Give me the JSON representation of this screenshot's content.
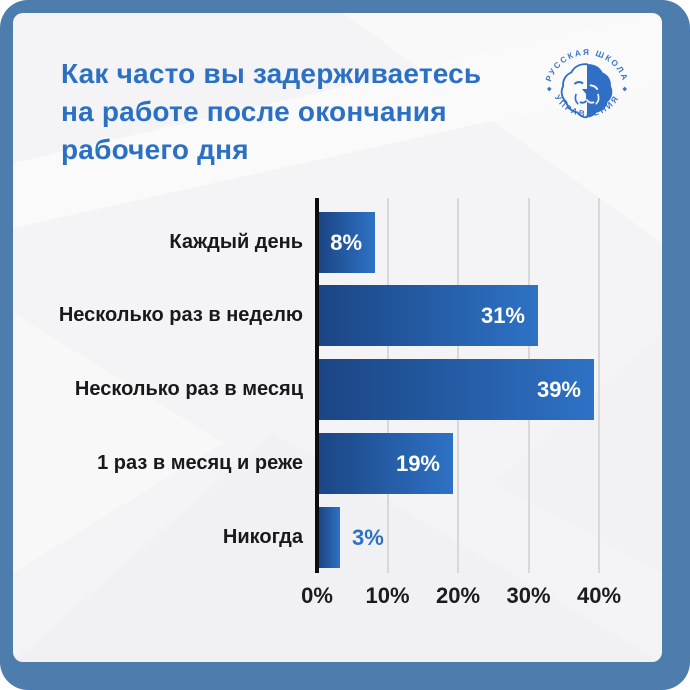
{
  "title": {
    "lines": [
      "Как часто вы задерживаетесь",
      "на работе после окончания",
      "рабочего дня"
    ]
  },
  "logo": {
    "top_text": "РУССКАЯ ШКОЛА",
    "bottom_text": "УПРАВЛЕНИЯ"
  },
  "chart_data": {
    "type": "bar",
    "orientation": "horizontal",
    "title": "Как часто вы задерживаетесь на работе после окончания рабочего дня",
    "categories": [
      "Каждый день",
      "Несколько раз в неделю",
      "Несколько раз в месяц",
      "1 раз в месяц и реже",
      "Никогда"
    ],
    "values": [
      8,
      31,
      39,
      19,
      3
    ],
    "value_labels": [
      "8%",
      "31%",
      "39%",
      "19%",
      "3%"
    ],
    "x_ticks": [
      0,
      10,
      20,
      30,
      40
    ],
    "x_tick_labels": [
      "0%",
      "10%",
      "20%",
      "30%",
      "40%"
    ],
    "xlim": [
      0,
      40
    ],
    "xlabel": "",
    "ylabel": "",
    "grid": true,
    "legend": false
  },
  "colors": {
    "frame": "#4d7dac",
    "card_bg": "#f4f4f6",
    "title": "#2c70c3",
    "bar_gradient_left": "#1b4584",
    "bar_gradient_right": "#2e72c5",
    "bar_label_inside": "#ffffff",
    "bar_label_outside": "#2d70c4",
    "category_label": "#19191b",
    "tick_label": "#1c1c1e",
    "axis_line": "#0d0d0f",
    "gridline": "#d8d8db",
    "logo": "#3f75c9"
  }
}
